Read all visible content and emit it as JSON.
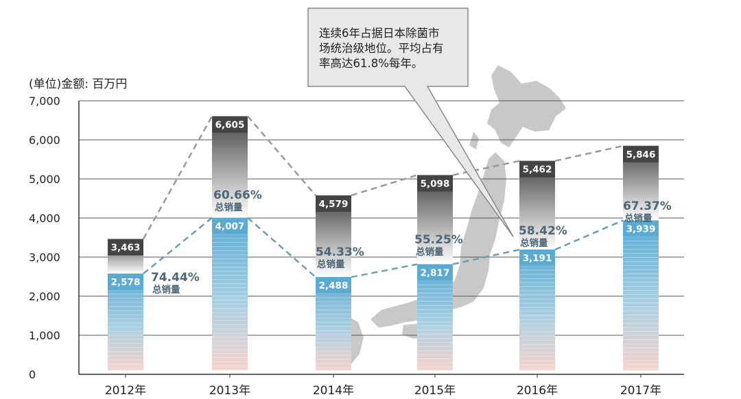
{
  "unit_label": "(单位)金额: 百万円",
  "callout": {
    "lines": [
      "连续6年占据日本除菌市",
      "场统治级地位。平均占有",
      "率高达61.8%每年。"
    ]
  },
  "share_suffix": "总销量",
  "colors": {
    "total_dark": "#444444",
    "total_light": "#ffffff",
    "share_blue": "#5aaad2",
    "share_fade": "#f5d3cc",
    "total_line": "#999999",
    "share_line": "#6a9cb4",
    "share_text": "#4d6678",
    "grid": "#555555",
    "map": "#c8c8c8",
    "callout_fill": "#e8e8e8",
    "callout_stroke": "#888888"
  },
  "chart_data": {
    "type": "bar",
    "title": "",
    "xlabel": "",
    "ylabel": "(单位)金额: 百万円",
    "ylim": [
      0,
      7000
    ],
    "yticks": [
      "0",
      "1,000",
      "2,000",
      "3,000",
      "4,000",
      "5,000",
      "6,000",
      "7,000"
    ],
    "grid": true,
    "categories": [
      "2012年",
      "2013年",
      "2014年",
      "2015年",
      "2016年",
      "2017年"
    ],
    "series": [
      {
        "values": [
          3463,
          6605,
          4579,
          5098,
          5462,
          5846
        ],
        "labels": [
          "3,463",
          "6,605",
          "4,579",
          "5,098",
          "5,462",
          "5,846"
        ]
      },
      {
        "values": [
          2578,
          4007,
          2488,
          2817,
          3191,
          3939
        ],
        "labels": [
          "2,578",
          "4,007",
          "2,488",
          "2,817",
          "3,191",
          "3,939"
        ]
      }
    ],
    "share_labels": [
      "74.44%",
      "60.66%",
      "54.33%",
      "55.25%",
      "58.42%",
      "67.37%"
    ]
  }
}
